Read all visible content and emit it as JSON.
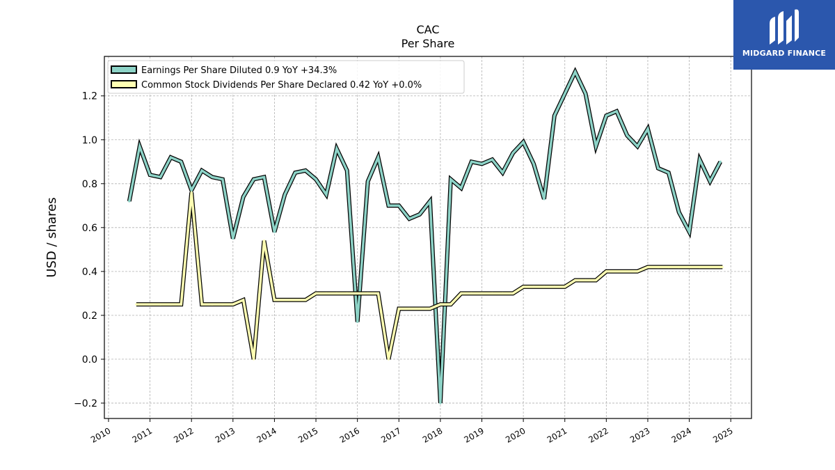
{
  "chart_data": {
    "type": "line",
    "title": "CAC",
    "subtitle": "Per  Share",
    "xlabel": "",
    "ylabel": "USD / shares",
    "xlim": [
      2009.9,
      2025.5
    ],
    "ylim": [
      -0.27,
      1.38
    ],
    "x_ticks": [
      "2010",
      "2011",
      "2012",
      "2013",
      "2014",
      "2015",
      "2016",
      "2017",
      "2018",
      "2019",
      "2020",
      "2021",
      "2022",
      "2023",
      "2024",
      "2025"
    ],
    "y_ticks": [
      -0.2,
      0.0,
      0.2,
      0.4,
      0.6,
      0.8,
      1.0,
      1.2
    ],
    "y_tick_labels": [
      "−0.2",
      "0.0",
      "0.2",
      "0.4",
      "0.6",
      "0.8",
      "1.0",
      "1.2"
    ],
    "grid": true,
    "legend_position": "top-left",
    "series": [
      {
        "name": "Earnings Per Share Diluted  0.9 YoY +34.3%",
        "color": "#8dd3c7",
        "points": [
          [
            2010.5,
            0.72
          ],
          [
            2010.75,
            0.97
          ],
          [
            2011.0,
            0.84
          ],
          [
            2011.25,
            0.83
          ],
          [
            2011.5,
            0.92
          ],
          [
            2011.75,
            0.9
          ],
          [
            2012.0,
            0.77
          ],
          [
            2012.25,
            0.86
          ],
          [
            2012.5,
            0.83
          ],
          [
            2012.75,
            0.82
          ],
          [
            2013.0,
            0.55
          ],
          [
            2013.25,
            0.74
          ],
          [
            2013.5,
            0.82
          ],
          [
            2013.75,
            0.83
          ],
          [
            2014.0,
            0.58
          ],
          [
            2014.25,
            0.75
          ],
          [
            2014.5,
            0.85
          ],
          [
            2014.75,
            0.86
          ],
          [
            2015.0,
            0.82
          ],
          [
            2015.25,
            0.75
          ],
          [
            2015.5,
            0.96
          ],
          [
            2015.75,
            0.86
          ],
          [
            2016.0,
            0.17
          ],
          [
            2016.25,
            0.81
          ],
          [
            2016.5,
            0.92
          ],
          [
            2016.75,
            0.7
          ],
          [
            2017.0,
            0.7
          ],
          [
            2017.25,
            0.64
          ],
          [
            2017.5,
            0.66
          ],
          [
            2017.75,
            0.72
          ],
          [
            2018.0,
            -0.2
          ],
          [
            2018.25,
            0.82
          ],
          [
            2018.5,
            0.78
          ],
          [
            2018.75,
            0.9
          ],
          [
            2019.0,
            0.89
          ],
          [
            2019.25,
            0.91
          ],
          [
            2019.5,
            0.85
          ],
          [
            2019.75,
            0.94
          ],
          [
            2020.0,
            0.99
          ],
          [
            2020.25,
            0.89
          ],
          [
            2020.5,
            0.73
          ],
          [
            2020.75,
            1.11
          ],
          [
            2021.0,
            1.21
          ],
          [
            2021.25,
            1.31
          ],
          [
            2021.5,
            1.21
          ],
          [
            2021.75,
            0.97
          ],
          [
            2022.0,
            1.11
          ],
          [
            2022.25,
            1.13
          ],
          [
            2022.5,
            1.02
          ],
          [
            2022.75,
            0.97
          ],
          [
            2023.0,
            1.05
          ],
          [
            2023.25,
            0.87
          ],
          [
            2023.5,
            0.85
          ],
          [
            2023.75,
            0.67
          ],
          [
            2024.0,
            0.58
          ],
          [
            2024.25,
            0.91
          ],
          [
            2024.5,
            0.81
          ],
          [
            2024.75,
            0.9
          ]
        ]
      },
      {
        "name": "Common Stock Dividends Per Share Declared  0.42 YoY +0.0%",
        "color": "#ffffb3",
        "points": [
          [
            2010.67,
            0.25
          ],
          [
            2011.0,
            0.25
          ],
          [
            2011.25,
            0.25
          ],
          [
            2011.5,
            0.25
          ],
          [
            2011.75,
            0.25
          ],
          [
            2012.0,
            0.76
          ],
          [
            2012.25,
            0.25
          ],
          [
            2012.5,
            0.25
          ],
          [
            2012.75,
            0.25
          ],
          [
            2013.0,
            0.25
          ],
          [
            2013.25,
            0.27
          ],
          [
            2013.5,
            0.0
          ],
          [
            2013.75,
            0.54
          ],
          [
            2014.0,
            0.27
          ],
          [
            2014.25,
            0.27
          ],
          [
            2014.5,
            0.27
          ],
          [
            2014.75,
            0.27
          ],
          [
            2015.0,
            0.3
          ],
          [
            2015.25,
            0.3
          ],
          [
            2015.5,
            0.3
          ],
          [
            2015.75,
            0.3
          ],
          [
            2016.0,
            0.3
          ],
          [
            2016.25,
            0.3
          ],
          [
            2016.5,
            0.3
          ],
          [
            2016.75,
            0.0
          ],
          [
            2017.0,
            0.23
          ],
          [
            2017.25,
            0.23
          ],
          [
            2017.5,
            0.23
          ],
          [
            2017.75,
            0.23
          ],
          [
            2018.0,
            0.25
          ],
          [
            2018.25,
            0.25
          ],
          [
            2018.5,
            0.3
          ],
          [
            2018.75,
            0.3
          ],
          [
            2019.0,
            0.3
          ],
          [
            2019.25,
            0.3
          ],
          [
            2019.5,
            0.3
          ],
          [
            2019.75,
            0.3
          ],
          [
            2020.0,
            0.33
          ],
          [
            2020.25,
            0.33
          ],
          [
            2020.5,
            0.33
          ],
          [
            2020.75,
            0.33
          ],
          [
            2021.0,
            0.33
          ],
          [
            2021.25,
            0.36
          ],
          [
            2021.5,
            0.36
          ],
          [
            2021.75,
            0.36
          ],
          [
            2022.0,
            0.4
          ],
          [
            2022.25,
            0.4
          ],
          [
            2022.5,
            0.4
          ],
          [
            2022.75,
            0.4
          ],
          [
            2023.0,
            0.42
          ],
          [
            2023.25,
            0.42
          ],
          [
            2023.5,
            0.42
          ],
          [
            2023.75,
            0.42
          ],
          [
            2024.0,
            0.42
          ],
          [
            2024.25,
            0.42
          ],
          [
            2024.5,
            0.42
          ],
          [
            2024.75,
            0.42
          ],
          [
            2024.8,
            0.42
          ]
        ]
      }
    ]
  },
  "logo": {
    "text": "MIDGARD FINANCE",
    "background": "#2b57ad"
  }
}
